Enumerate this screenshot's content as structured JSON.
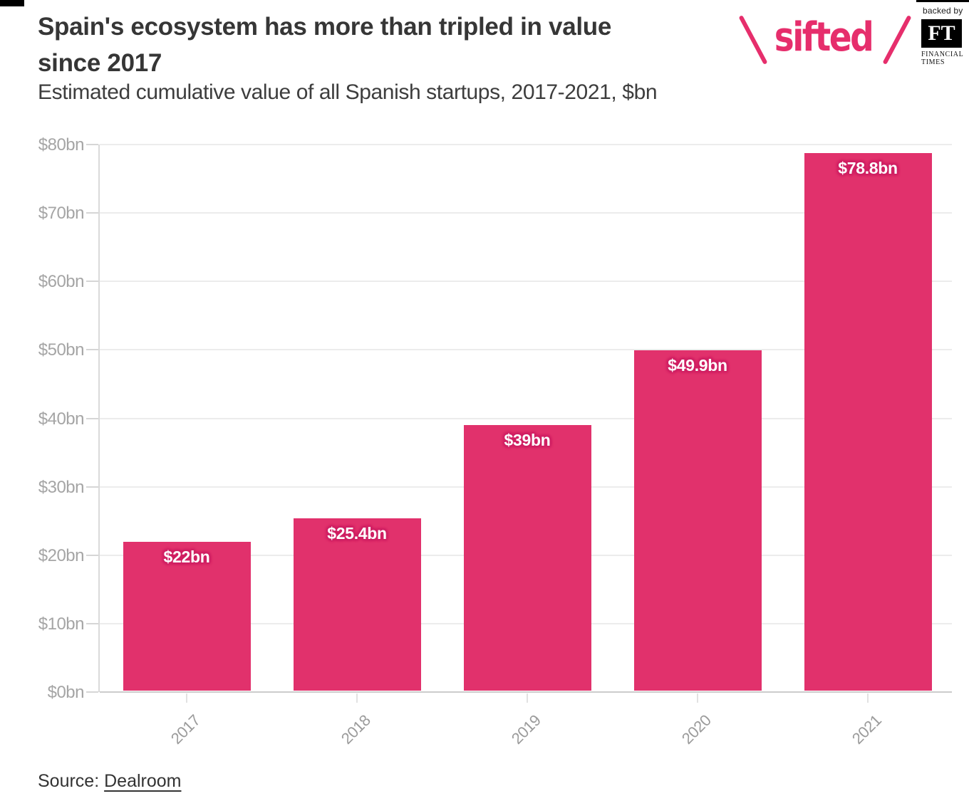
{
  "header": {
    "title_lines": [
      "Spain's ecosystem has more than tripled in value",
      "since 2017"
    ],
    "subtitle": "Estimated cumulative value of all Spanish startups, 2017-2021, $bn"
  },
  "branding": {
    "sifted_logo_text": "sifted",
    "backed_by_label": "backed by",
    "ft_initials": "FT",
    "ft_name_line1": "FINANCIAL",
    "ft_name_line2": "TIMES"
  },
  "chart_data": {
    "type": "bar",
    "title": "Spain's ecosystem has more than tripled in value since 2017",
    "subtitle": "Estimated cumulative value of all Spanish startups, 2017-2021, $bn",
    "categories": [
      "2017",
      "2018",
      "2019",
      "2020",
      "2021"
    ],
    "values": [
      22,
      25.4,
      39,
      49.9,
      78.8
    ],
    "bar_labels": [
      "$22bn",
      "$25.4bn",
      "$39bn",
      "$49.9bn",
      "$78.8bn"
    ],
    "xlabel": "",
    "ylabel": "",
    "ylim": [
      0,
      80
    ],
    "ytick_labels": [
      "$0bn",
      "$10bn",
      "$20bn",
      "$30bn",
      "$40bn",
      "$50bn",
      "$60bn",
      "$70bn",
      "$80bn"
    ],
    "grid": true,
    "legend": "none",
    "bar_color": "#e1316c",
    "bar_label_halo_color": "#cf2164",
    "bar_label_text_color": "#ffffff"
  },
  "colors": {
    "accent_pink": "#e62e6c",
    "title_text": "#363636",
    "axis_label_gray": "#a5a5a5"
  },
  "footer": {
    "source_prefix": "Source: ",
    "source_link_label": "Dealroom"
  }
}
